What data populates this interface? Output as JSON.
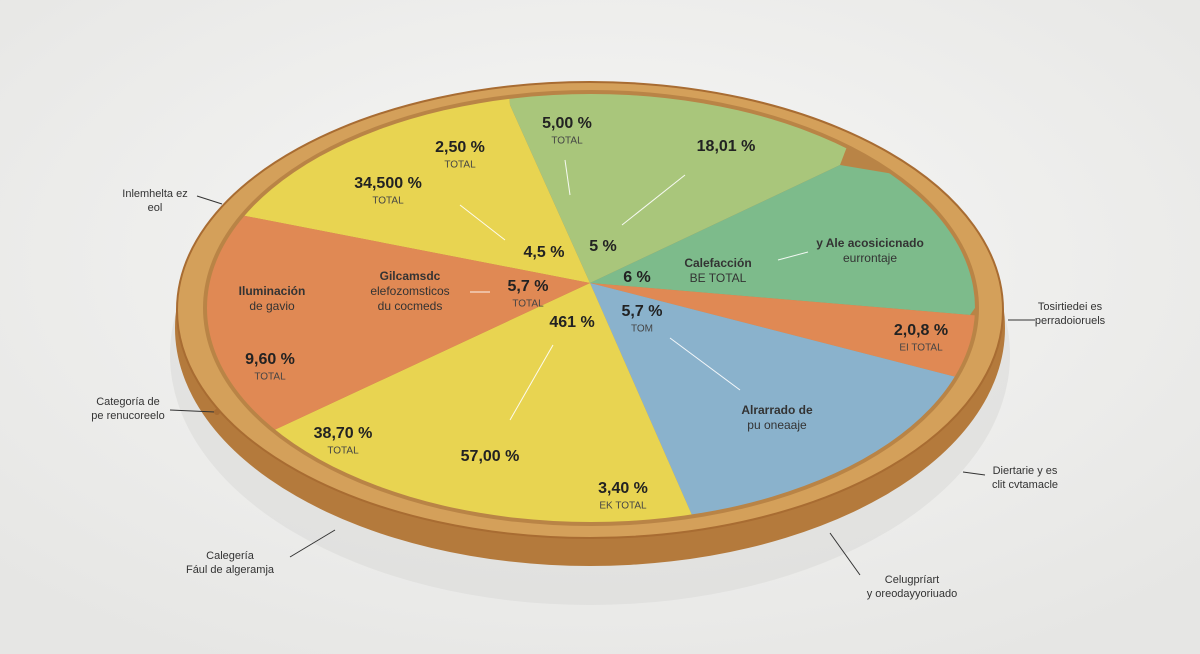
{
  "slice_labels": [
    {
      "text": "2,50 %",
      "sub": "TOTAL"
    },
    {
      "text": "34,500 %",
      "sub": "TOTAL"
    },
    {
      "text": "5,00 %",
      "sub": "TOTAL"
    },
    {
      "text": "18,01 %"
    },
    {
      "text": "4,5 %"
    },
    {
      "text": "5 %"
    },
    {
      "text": "Calefacción",
      "sub": "BE TOTAL"
    },
    {
      "text": "y Ale acosicicnado",
      "sub": "eurrontaje"
    },
    {
      "text": "6 %"
    },
    {
      "text": "Iluminación",
      "sub": "de gavio"
    },
    {
      "text": "Gilcamsdc",
      "sub": "elefozomsticos",
      "sub2": "du cocmeds"
    },
    {
      "text": "5,7 %",
      "sub": "TOTAL"
    },
    {
      "text": "5,7 %",
      "sub": "TOM"
    },
    {
      "text": "461 %"
    },
    {
      "text": "9,60 %",
      "sub": "TOTAL"
    },
    {
      "text": "2,0,8 %",
      "sub": "EI TOTAL"
    },
    {
      "text": "Alrarrado de",
      "sub": "pu oneaaje"
    },
    {
      "text": "38,70 %",
      "sub": "TOTAL"
    },
    {
      "text": "57,00 %"
    },
    {
      "text": "3,40 %",
      "sub": "EK TOTAL"
    }
  ],
  "callouts": [
    {
      "lines": [
        "Inlemhelta ez",
        "eol"
      ]
    },
    {
      "lines": [
        "Categoría de",
        "pe renucoreelo"
      ]
    },
    {
      "lines": [
        "Calegería",
        "Fául de algeramja"
      ]
    },
    {
      "lines": [
        "Celugpríart",
        "y oreodayyoriuado"
      ]
    },
    {
      "lines": [
        "Diertarie y es",
        "clit cvtamacle"
      ]
    },
    {
      "lines": [
        "Tosirtiedei es",
        "perradoioruels"
      ]
    }
  ]
}
